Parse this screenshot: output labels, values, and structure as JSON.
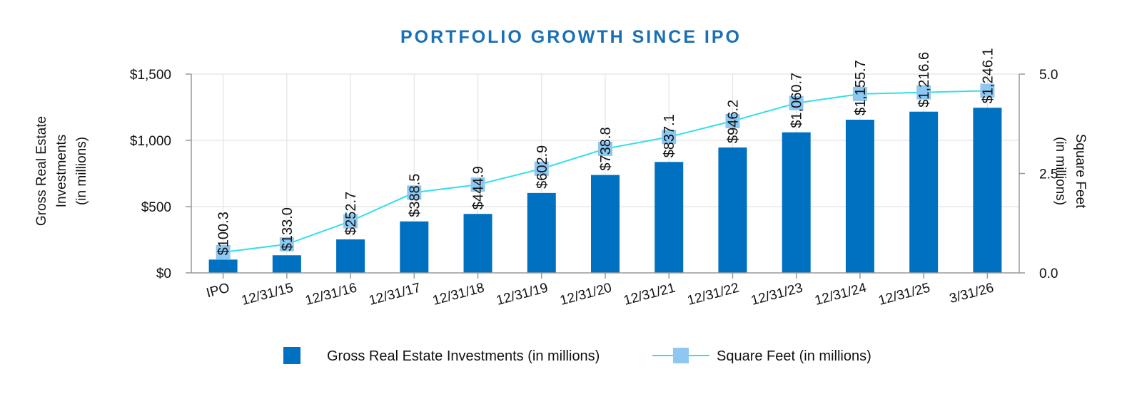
{
  "chart_data": {
    "type": "bar",
    "title": "PORTFOLIO GROWTH SINCE IPO",
    "categories": [
      "IPO",
      "12/31/15",
      "12/31/16",
      "12/31/17",
      "12/31/18",
      "12/31/19",
      "12/31/20",
      "12/31/21",
      "12/31/22",
      "12/31/23",
      "12/31/24",
      "12/31/25",
      "3/31/26"
    ],
    "series": [
      {
        "name": "Gross Real Estate Investments (in millions)",
        "type": "bar",
        "axis": "left",
        "color": "#0070c0",
        "values": [
          100.3,
          133.0,
          252.7,
          388.5,
          444.9,
          602.9,
          738.8,
          837.1,
          946.2,
          1060.7,
          1155.7,
          1216.6,
          1246.1
        ],
        "labels": [
          "$100.3",
          "$133.0",
          "$252.7",
          "$388.5",
          "$444.9",
          "$602.9",
          "$738.8",
          "$837.1",
          "$946.2",
          "$1,060.7",
          "$1,155.7",
          "$1,216.6",
          "$1,246.1"
        ]
      },
      {
        "name": "Square Feet (in millions)",
        "type": "line",
        "axis": "right",
        "line_color": "#33e0e8",
        "marker_color": "#8cc8f2",
        "values": [
          0.52,
          0.72,
          1.3,
          2.02,
          2.22,
          2.62,
          3.12,
          3.42,
          3.82,
          4.27,
          4.5,
          4.54,
          4.58
        ]
      }
    ],
    "y_left": {
      "label_lines": [
        "Gross Real Estate",
        "Investments",
        "(in millions)"
      ],
      "ylim": [
        0,
        1500
      ],
      "ticks": [
        "$0",
        "$500",
        "$1,000",
        "$1,500"
      ],
      "tick_values": [
        0,
        500,
        1000,
        1500
      ]
    },
    "y_right": {
      "label_lines": [
        "Square Feet",
        "(in millions)"
      ],
      "ylim": [
        0,
        5
      ],
      "ticks": [
        "0.0",
        "2.5",
        "5.0"
      ],
      "tick_values": [
        0,
        2.5,
        5
      ]
    },
    "grid": true,
    "legend_position": "bottom"
  }
}
